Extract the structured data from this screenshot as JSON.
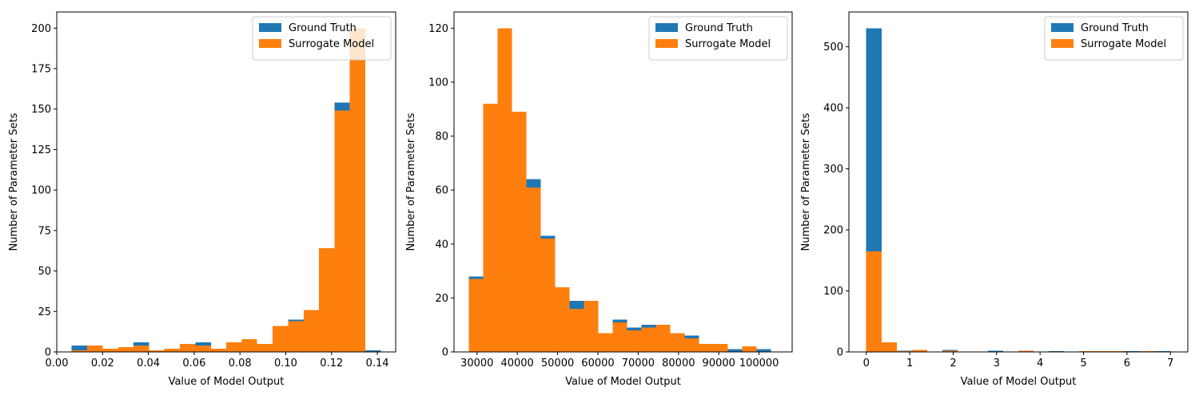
{
  "colors": {
    "gt": "#1f77b4",
    "sm": "#ff7f0e"
  },
  "chart_data": [
    {
      "type": "bar",
      "xlabel": "Value of Model Output",
      "ylabel": "Number of Parameter Sets",
      "xlim": [
        0.0,
        0.148
      ],
      "ylim": [
        0,
        210
      ],
      "xticks": [
        0.0,
        0.02,
        0.04,
        0.06,
        0.08,
        0.1,
        0.12,
        0.14
      ],
      "xtick_labels": [
        "0.00",
        "0.02",
        "0.04",
        "0.06",
        "0.08",
        "0.10",
        "0.12",
        "0.14"
      ],
      "yticks": [
        0,
        25,
        50,
        75,
        100,
        125,
        150,
        175,
        200
      ],
      "ytick_labels": [
        "0",
        "25",
        "50",
        "75",
        "100",
        "125",
        "150",
        "175",
        "200"
      ],
      "legend": {
        "position": "top-right",
        "entries": [
          "Ground Truth",
          "Surrogate Model"
        ]
      },
      "series": [
        {
          "name": "Ground Truth",
          "bin_edges": [
            0.0065,
            0.0133,
            0.02,
            0.0268,
            0.0335,
            0.0403,
            0.047,
            0.0538,
            0.0605,
            0.0673,
            0.074,
            0.0808,
            0.0875,
            0.0943,
            0.101,
            0.1078,
            0.1145,
            0.1213,
            0.128,
            0.1348,
            0.1415
          ],
          "values": [
            4,
            4,
            2,
            3,
            6,
            1,
            2,
            5,
            6,
            2,
            6,
            8,
            5,
            16,
            20,
            26,
            39,
            154,
            200,
            1
          ]
        },
        {
          "name": "Surrogate Model",
          "bin_edges": [
            0.0065,
            0.0133,
            0.02,
            0.0268,
            0.0335,
            0.0403,
            0.047,
            0.0538,
            0.0605,
            0.0673,
            0.074,
            0.0808,
            0.0875,
            0.0943,
            0.101,
            0.1078,
            0.1145,
            0.1213,
            0.128,
            0.1348
          ],
          "values": [
            1,
            4,
            2,
            3,
            4,
            1,
            2,
            5,
            4,
            2,
            6,
            8,
            5,
            16,
            19,
            26,
            64,
            149,
            200
          ]
        }
      ]
    },
    {
      "type": "bar",
      "xlabel": "Value of Model Output",
      "ylabel": "Number of Parameter Sets",
      "xlim": [
        24300,
        108200
      ],
      "ylim": [
        0,
        126
      ],
      "xticks": [
        30000,
        40000,
        50000,
        60000,
        70000,
        80000,
        90000,
        100000
      ],
      "xtick_labels": [
        "30000",
        "40000",
        "50000",
        "60000",
        "70000",
        "80000",
        "90000",
        "100000"
      ],
      "yticks": [
        0,
        20,
        40,
        60,
        80,
        100,
        120
      ],
      "ytick_labels": [
        "0",
        "20",
        "40",
        "60",
        "80",
        "100",
        "120"
      ],
      "legend": {
        "position": "top-right",
        "entries": [
          "Ground Truth",
          "Surrogate Model"
        ]
      },
      "series": [
        {
          "name": "Ground Truth",
          "bin_edges": [
            28000,
            31570,
            35140,
            38710,
            42280,
            45850,
            49420,
            52990,
            56560,
            60130,
            63700,
            67270,
            70840,
            74410,
            77980,
            81550,
            85120,
            88690,
            92260,
            95830,
            99400,
            102970
          ],
          "values": [
            28,
            92,
            120,
            89,
            64,
            43,
            24,
            19,
            19,
            7,
            12,
            9,
            10,
            10,
            7,
            6,
            3,
            3,
            1,
            2,
            1
          ]
        },
        {
          "name": "Surrogate Model",
          "bin_edges": [
            28000,
            31570,
            35140,
            38710,
            42280,
            45850,
            49420,
            52990,
            56560,
            60130,
            63700,
            67270,
            70840,
            74410,
            77980,
            81550,
            85120,
            88690,
            92260,
            95830,
            99400,
            102970
          ],
          "values": [
            27,
            92,
            120,
            89,
            61,
            42,
            24,
            16,
            19,
            7,
            11,
            8,
            9,
            10,
            7,
            5,
            3,
            3,
            0,
            2,
            0
          ]
        }
      ]
    },
    {
      "type": "bar",
      "xlabel": "Value of Model Output",
      "ylabel": "Number of Parameter Sets",
      "xlim": [
        -0.4,
        7.4
      ],
      "ylim": [
        0,
        557
      ],
      "xticks": [
        0,
        1,
        2,
        3,
        4,
        5,
        6,
        7
      ],
      "xtick_labels": [
        "0",
        "1",
        "2",
        "3",
        "4",
        "5",
        "6",
        "7"
      ],
      "yticks": [
        0,
        100,
        200,
        300,
        400,
        500
      ],
      "ytick_labels": [
        "0",
        "100",
        "200",
        "300",
        "400",
        "500"
      ],
      "legend": {
        "position": "top-right",
        "entries": [
          "Ground Truth",
          "Surrogate Model"
        ]
      },
      "series": [
        {
          "name": "Ground Truth",
          "bin_edges": [
            0.0,
            0.35,
            0.7,
            1.05,
            1.4,
            1.75,
            2.1,
            2.45,
            2.8,
            3.15,
            3.5,
            3.85,
            4.2,
            4.55,
            4.9,
            5.25,
            5.6,
            5.95,
            6.3,
            6.65,
            7.0
          ],
          "values": [
            530,
            16,
            2,
            1,
            0,
            3,
            0,
            0,
            2,
            0,
            0,
            0,
            1,
            0,
            0,
            0,
            0,
            1,
            0,
            1
          ]
        },
        {
          "name": "Surrogate Model",
          "bin_edges": [
            0.0,
            0.35,
            0.7,
            1.05,
            1.4,
            1.75,
            2.1,
            2.45,
            2.8,
            3.15,
            3.5,
            3.85,
            4.2,
            4.55,
            4.9,
            5.25,
            5.6,
            5.95,
            6.3,
            6.65,
            7.0
          ],
          "values": [
            165,
            16,
            1,
            3,
            0,
            2,
            0,
            0,
            0,
            0,
            2,
            0,
            0,
            0,
            1,
            1,
            1,
            0,
            1,
            0
          ]
        }
      ]
    }
  ]
}
